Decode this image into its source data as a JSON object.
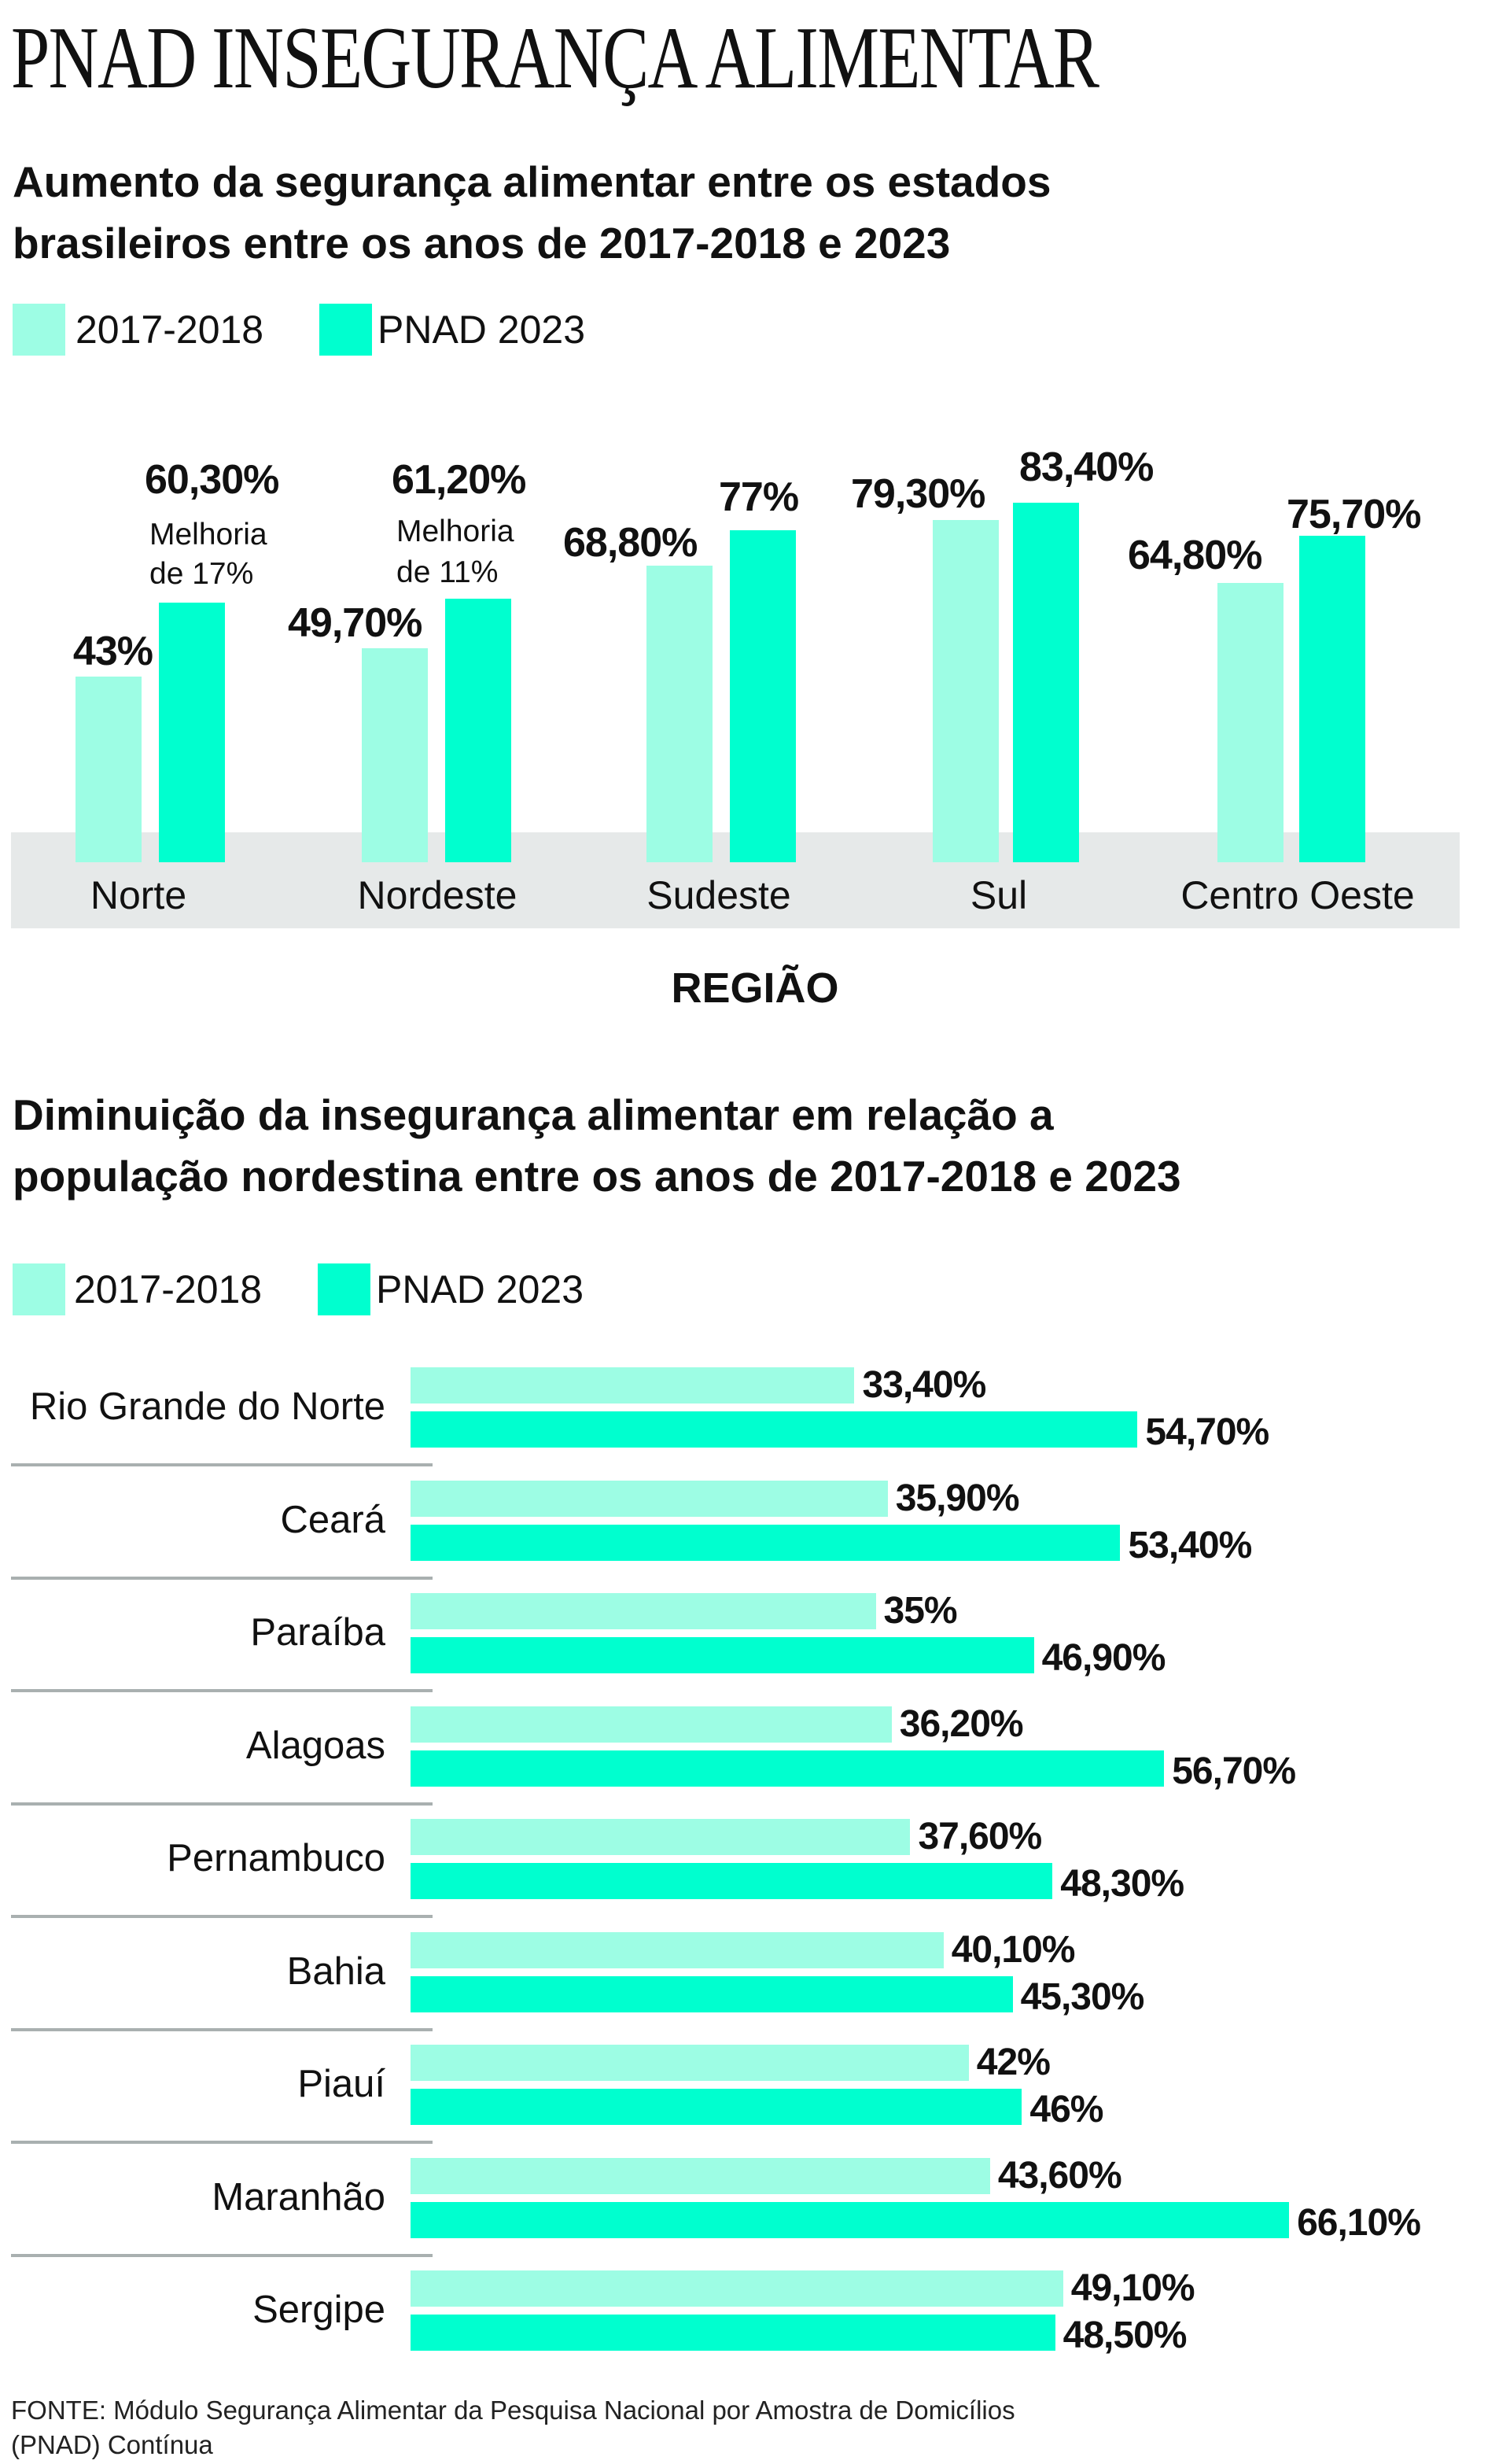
{
  "title": "PNAD INSEGURANÇA ALIMENTAR",
  "colors": {
    "series_2017_2018": "#9dfde4",
    "series_2023": "#00ffcf",
    "band": "#e6e9e9"
  },
  "chart_data": [
    {
      "type": "bar",
      "title_lines": [
        "Aumento da segurança alimentar entre os estados",
        "brasileiros entre os anos de 2017-2018 e 2023"
      ],
      "xlabel": "REGIÃO",
      "legend": [
        "2017-2018",
        "PNAD 2023"
      ],
      "legend_position": "top-left",
      "categories": [
        "Norte",
        "Nordeste",
        "Sudeste",
        "Sul",
        "Centro Oeste"
      ],
      "series": [
        {
          "name": "2017-2018",
          "values": [
            43,
            49.7,
            68.8,
            79.3,
            64.8
          ],
          "labels": [
            "43%",
            "49,70%",
            "68,80%",
            "79,30%",
            "64,80%"
          ]
        },
        {
          "name": "PNAD 2023",
          "values": [
            60.3,
            61.2,
            77,
            83.4,
            75.7
          ],
          "labels": [
            "60,30%",
            "61,20%",
            "77%",
            "83,40%",
            "75,70%"
          ]
        }
      ],
      "annotations": [
        {
          "category": "Norte",
          "lines": [
            "Melhoria",
            "de 17%"
          ]
        },
        {
          "category": "Nordeste",
          "lines": [
            "Melhoria",
            "de 11%"
          ]
        }
      ],
      "grid": false
    },
    {
      "type": "bar",
      "orientation": "horizontal",
      "title_lines": [
        "Diminuição da insegurança alimentar em relação a",
        "população nordestina entre os anos de 2017-2018 e 2023"
      ],
      "legend": [
        "2017-2018",
        "PNAD 2023"
      ],
      "legend_position": "top-left",
      "categories": [
        "Rio Grande do Norte",
        "Ceará",
        "Paraíba",
        "Alagoas",
        "Pernambuco",
        "Bahia",
        "Piauí",
        "Maranhão",
        "Sergipe"
      ],
      "series": [
        {
          "name": "2017-2018",
          "values": [
            33.4,
            35.9,
            35,
            36.2,
            37.6,
            40.1,
            42,
            43.6,
            49.1
          ],
          "labels": [
            "33,40%",
            "35,90%",
            "35%",
            "36,20%",
            "37,60%",
            "40,10%",
            "42%",
            "43,60%",
            "49,10%"
          ]
        },
        {
          "name": "PNAD 2023",
          "values": [
            54.7,
            53.4,
            46.9,
            56.7,
            48.3,
            45.3,
            46,
            66.1,
            48.5
          ],
          "labels": [
            "54,70%",
            "53,40%",
            "46,90%",
            "56,70%",
            "48,30%",
            "45,30%",
            "46%",
            "66,10%",
            "48,50%"
          ]
        }
      ],
      "grid": false
    }
  ],
  "footer": [
    "FONTE: Módulo Segurança Alimentar da Pesquisa Nacional por Amostra de Domicílios",
    "(PNAD) Contínua"
  ]
}
